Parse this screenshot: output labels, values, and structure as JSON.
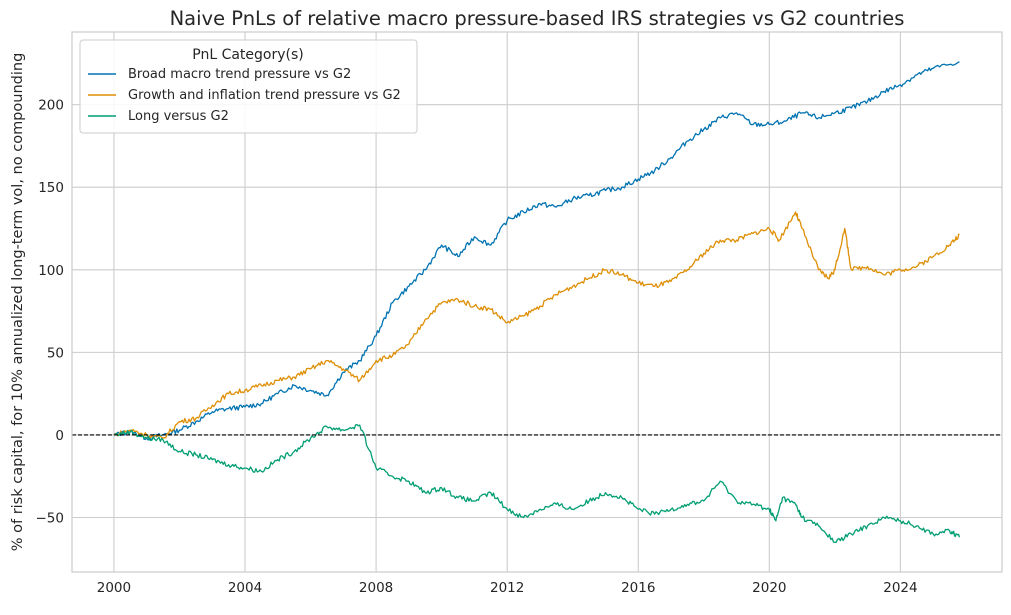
{
  "chart_data": {
    "type": "line",
    "title": "Naive PnLs of relative macro pressure-based IRS strategies vs G2 countries",
    "xlabel": "",
    "ylabel": "% of risk capital, for 10% annualized long-term vol, no compounding",
    "xlim": [
      1998.72,
      2027.1
    ],
    "ylim": [
      -83,
      244
    ],
    "x_ticks": [
      2000,
      2004,
      2008,
      2012,
      2016,
      2020,
      2024
    ],
    "y_ticks": [
      -50,
      0,
      50,
      100,
      150,
      200
    ],
    "grid": true,
    "legend": {
      "title": "PnL Category(s)",
      "placement": "top-left"
    },
    "reference_line": {
      "y": 0,
      "style": "dashed",
      "color": "#000000"
    },
    "series": [
      {
        "name": "Broad macro trend pressure vs G2",
        "color": "#0173b2",
        "x": [
          2000,
          2000.5,
          2001,
          2001.5,
          2002,
          2002.5,
          2003,
          2003.5,
          2004,
          2004.5,
          2005,
          2005.5,
          2006,
          2006.5,
          2007,
          2007.5,
          2008,
          2008.5,
          2009,
          2009.5,
          2010,
          2010.5,
          2011,
          2011.5,
          2012,
          2012.5,
          2013,
          2013.5,
          2014,
          2014.5,
          2015,
          2015.5,
          2016,
          2016.5,
          2017,
          2017.5,
          2018,
          2018.5,
          2019,
          2019.5,
          2020,
          2020.5,
          2021,
          2021.5,
          2022,
          2022.5,
          2023,
          2023.5,
          2024,
          2024.5,
          2025,
          2025.8
        ],
        "y": [
          0,
          2,
          -2,
          0,
          3,
          8,
          14,
          16,
          17,
          19,
          25,
          30,
          27,
          24,
          38,
          45,
          60,
          80,
          90,
          100,
          115,
          108,
          120,
          115,
          130,
          135,
          140,
          138,
          143,
          145,
          148,
          150,
          155,
          160,
          168,
          178,
          185,
          192,
          195,
          188,
          188,
          190,
          195,
          192,
          195,
          198,
          202,
          208,
          212,
          218,
          222,
          226
        ]
      },
      {
        "name": "Growth and inflation trend pressure vs G2",
        "color": "#de8f05",
        "x": [
          2000,
          2000.5,
          2001,
          2001.5,
          2002,
          2002.5,
          2003,
          2003.5,
          2004,
          2004.5,
          2005,
          2005.5,
          2006,
          2006.5,
          2007,
          2007.5,
          2008,
          2008.5,
          2009,
          2009.5,
          2010,
          2010.5,
          2011,
          2011.5,
          2012,
          2012.5,
          2013,
          2013.5,
          2014,
          2014.5,
          2015,
          2015.5,
          2016,
          2016.5,
          2017,
          2017.5,
          2018,
          2018.5,
          2019,
          2019.5,
          2020,
          2020.3,
          2020.8,
          2021,
          2021.5,
          2021.8,
          2022,
          2022.3,
          2022.5,
          2023,
          2023.5,
          2024,
          2024.5,
          2025,
          2025.5,
          2025.8
        ],
        "y": [
          0,
          3,
          0,
          -2,
          8,
          10,
          18,
          25,
          27,
          30,
          33,
          35,
          40,
          45,
          40,
          33,
          45,
          48,
          55,
          70,
          80,
          82,
          78,
          76,
          68,
          72,
          78,
          85,
          90,
          95,
          100,
          97,
          92,
          90,
          93,
          100,
          110,
          118,
          118,
          122,
          125,
          118,
          135,
          125,
          100,
          95,
          100,
          125,
          100,
          102,
          97,
          100,
          102,
          108,
          115,
          121
        ]
      },
      {
        "name": "Long versus G2",
        "color": "#029e73",
        "x": [
          2000,
          2000.5,
          2001,
          2001.5,
          2002,
          2002.5,
          2003,
          2003.5,
          2004,
          2004.5,
          2005,
          2005.5,
          2006,
          2006.5,
          2007,
          2007.5,
          2008,
          2008.5,
          2009,
          2009.5,
          2010,
          2010.5,
          2011,
          2011.5,
          2012,
          2012.5,
          2013,
          2013.5,
          2014,
          2014.5,
          2015,
          2015.5,
          2016,
          2016.5,
          2017,
          2017.5,
          2018,
          2018.5,
          2019,
          2019.5,
          2020,
          2020.2,
          2020.4,
          2020.8,
          2021,
          2021.5,
          2022,
          2022.5,
          2023,
          2023.5,
          2024,
          2024.5,
          2025,
          2025.5,
          2025.8
        ],
        "y": [
          0,
          2,
          -2,
          -3,
          -10,
          -12,
          -15,
          -18,
          -20,
          -22,
          -15,
          -10,
          -2,
          5,
          3,
          6,
          -20,
          -25,
          -28,
          -35,
          -32,
          -38,
          -40,
          -35,
          -45,
          -50,
          -45,
          -42,
          -45,
          -40,
          -35,
          -38,
          -45,
          -48,
          -45,
          -42,
          -40,
          -28,
          -40,
          -42,
          -45,
          -52,
          -38,
          -42,
          -50,
          -55,
          -65,
          -60,
          -55,
          -50,
          -52,
          -55,
          -60,
          -58,
          -62
        ]
      }
    ]
  }
}
